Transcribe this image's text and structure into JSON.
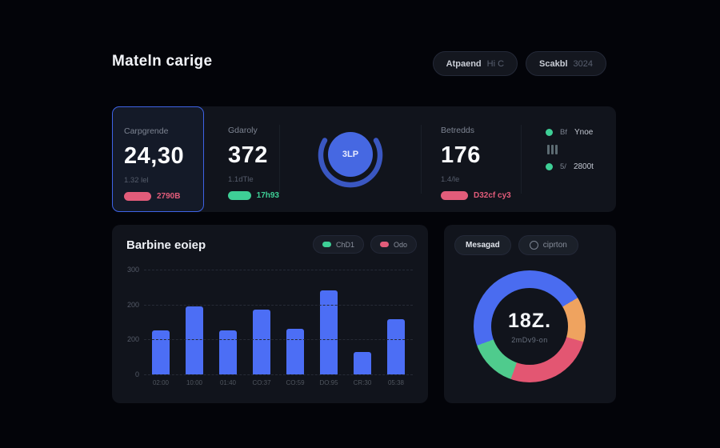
{
  "page": {
    "title": "Mateln carige"
  },
  "header": {
    "buttons": [
      {
        "label_strong": "Atpaend",
        "label_muted": "Hi C"
      },
      {
        "label_strong": "Scakbl",
        "label_muted": "3024"
      }
    ]
  },
  "colors": {
    "accent_blue": "#4c6ef5",
    "selected_border": "#3e63e6",
    "pink": "#e25c7a",
    "green": "#3ecf96",
    "orange": "#efa35f",
    "gauge_blue": "#4668e2",
    "gauge_arc": "#3a57c2"
  },
  "stats": {
    "cards": [
      {
        "label": "Carpgrende",
        "value": "24,30",
        "sub": "1.32 lel",
        "badge": "2790B",
        "badge_color": "pink"
      },
      {
        "label": "Gdaroly",
        "value": "372",
        "sub": "1.1dTle",
        "badge": "17h93",
        "badge_color": "green"
      },
      {
        "label": "Betredds",
        "value": "176",
        "sub": "1.4/le",
        "badge": "D32cf cy3",
        "badge_color": "pink"
      }
    ],
    "gauge": {
      "center_label": "3LP"
    },
    "legend": [
      {
        "prefix": "Bf",
        "label": "Ynoe"
      },
      {
        "prefix": "5/",
        "label": "2800t"
      }
    ]
  },
  "bar_card": {
    "title": "Barbine eoiep",
    "legend": [
      {
        "label": "ChD1",
        "color": "green"
      },
      {
        "label": "Odo",
        "color": "pink"
      }
    ]
  },
  "donut_card": {
    "pill_primary": "Mesagad",
    "pill_secondary": "ciprton"
  },
  "chart_data": [
    {
      "type": "bar",
      "title": "Barbine eoiep",
      "categories": [
        "02:00",
        "10:00",
        "01:40",
        "CO:37",
        "CO:59",
        "DO:95",
        "CR:30",
        "05:38"
      ],
      "values": [
        125,
        195,
        125,
        185,
        130,
        240,
        65,
        158
      ],
      "xlabel": "",
      "ylabel": "",
      "ylim": [
        0,
        300
      ],
      "ytick_labels": [
        "300",
        "200",
        "200",
        "0"
      ],
      "grid": "horizontal-dashed",
      "bar_color": "#4c6ef5",
      "legend_entries": [
        "ChD1",
        "Odo"
      ]
    },
    {
      "type": "pie",
      "style": "donut",
      "center_value": "18Z.",
      "center_sub": "2mDv9-on",
      "rotation_deg": 250,
      "segments": [
        {
          "name": "blue",
          "value": 47,
          "color": "#4a6cf0"
        },
        {
          "name": "orange",
          "value": 13,
          "color": "#efa35f"
        },
        {
          "name": "pink",
          "value": 26,
          "color": "#e35672"
        },
        {
          "name": "green",
          "value": 14,
          "color": "#4fcb8d"
        }
      ]
    }
  ]
}
